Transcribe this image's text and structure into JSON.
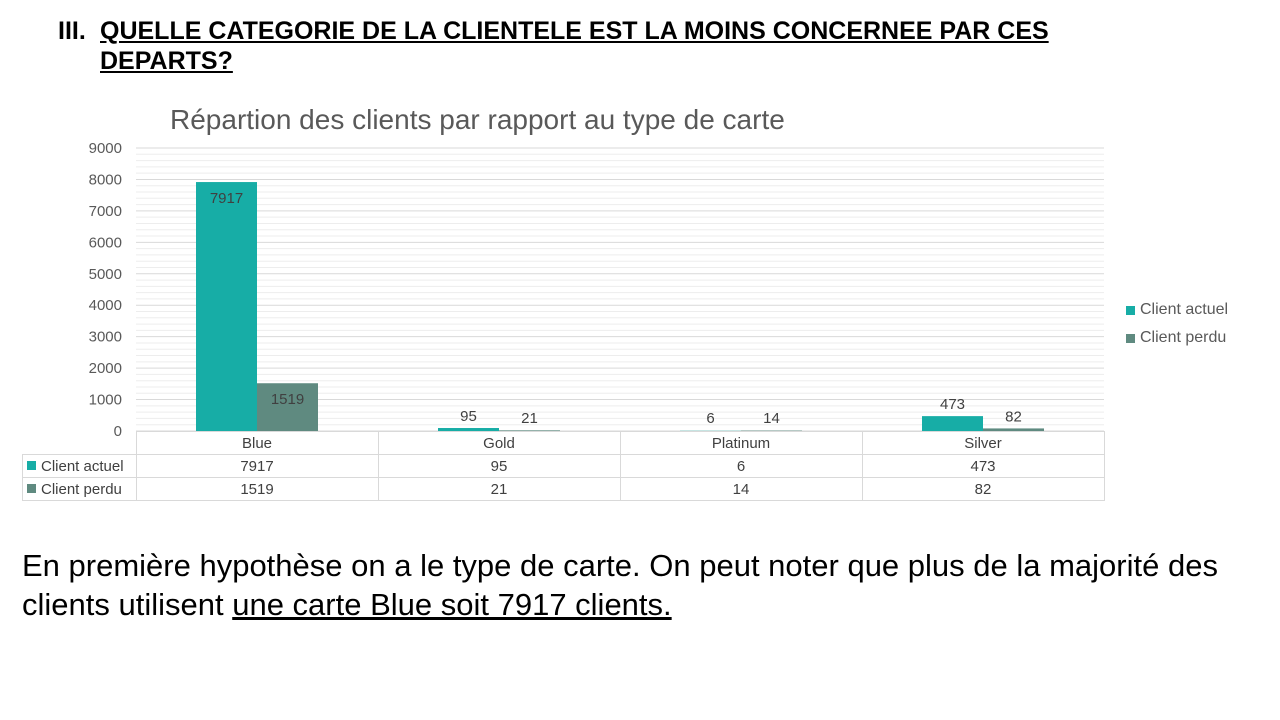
{
  "heading": {
    "number": "III.",
    "text": "QUELLE CATEGORIE DE LA CLIENTELE EST LA MOINS CONCERNEE PAR CES DEPARTS?"
  },
  "body": {
    "text": "En première hypothèse on a le type de carte. On peut noter que plus de la majorité des clients utilisent ",
    "underlined": "une carte Blue soit 7917 clients."
  },
  "chart_data": {
    "type": "bar",
    "title": "Répartion des clients par rapport au type de carte",
    "categories": [
      "Blue",
      "Gold",
      "Platinum",
      "Silver"
    ],
    "series": [
      {
        "name": "Client actuel",
        "values": [
          7917,
          95,
          6,
          473
        ],
        "color": "#17ada6"
      },
      {
        "name": "Client perdu",
        "values": [
          1519,
          21,
          14,
          82
        ],
        "color": "#5f8a80"
      }
    ],
    "ylim": [
      0,
      9000
    ],
    "yticks": [
      0,
      1000,
      2000,
      3000,
      4000,
      5000,
      6000,
      7000,
      8000,
      9000
    ],
    "grid": true,
    "legend": "right",
    "data_table": true
  }
}
